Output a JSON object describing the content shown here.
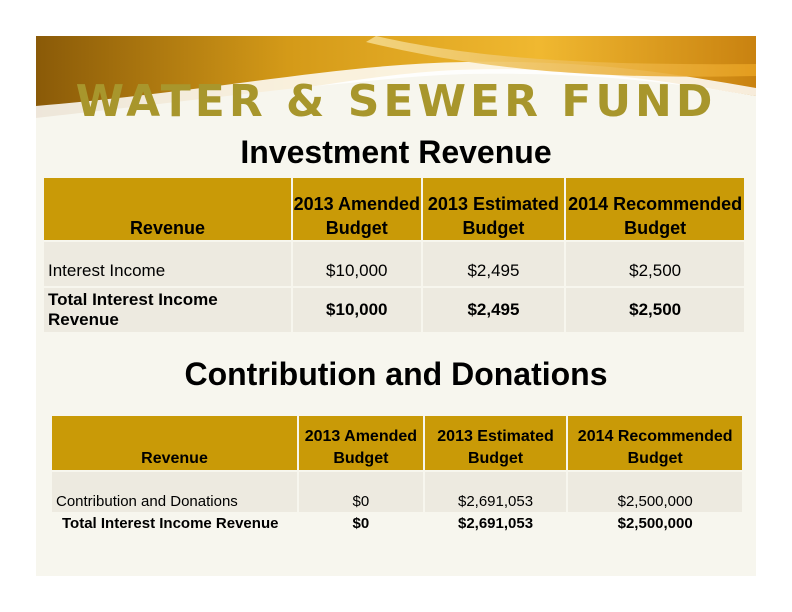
{
  "slide": {
    "title": "WATER & SEWER FUND",
    "colors": {
      "title": "#a8962c",
      "header_fill": "#c99a07",
      "row_fill": "#edeae0",
      "background": "#f7f6ee"
    }
  },
  "investment": {
    "heading": "Investment Revenue",
    "columns": [
      "Revenue",
      "2013 Amended Budget",
      "2013 Estimated Budget",
      "2014 Recommended Budget"
    ],
    "rows": [
      {
        "label": "Interest Income",
        "amended": "$10,000",
        "estimated": "$2,495",
        "recommended": "$2,500"
      },
      {
        "label": "Total Interest Income Revenue",
        "amended": "$10,000",
        "estimated": "$2,495",
        "recommended": "$2,500"
      }
    ]
  },
  "contributions": {
    "heading": "Contribution and Donations",
    "columns": [
      "Revenue",
      "2013 Amended Budget",
      "2013 Estimated Budget",
      "2014 Recommended Budget"
    ],
    "rows": [
      {
        "label": "Contribution and Donations",
        "amended": "$0",
        "estimated": "$2,691,053",
        "recommended": "$2,500,000"
      },
      {
        "label": "Total Interest Income Revenue",
        "amended": "$0",
        "estimated": "$2,691,053",
        "recommended": "$2,500,000"
      }
    ]
  }
}
